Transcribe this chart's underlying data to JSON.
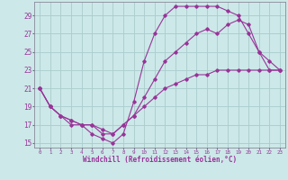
{
  "xlabel": "Windchill (Refroidissement éolien,°C)",
  "bg_color": "#cce8e8",
  "line_color": "#993399",
  "grid_color": "#aacccc",
  "xlim": [
    -0.5,
    23.5
  ],
  "ylim": [
    14.5,
    30.5
  ],
  "yticks": [
    15,
    17,
    19,
    21,
    23,
    25,
    27,
    29
  ],
  "xticks": [
    0,
    1,
    2,
    3,
    4,
    5,
    6,
    7,
    8,
    9,
    10,
    11,
    12,
    13,
    14,
    15,
    16,
    17,
    18,
    19,
    20,
    21,
    22,
    23
  ],
  "line1_x": [
    0,
    1,
    2,
    3,
    4,
    5,
    6,
    7,
    8,
    9,
    10,
    11,
    12,
    13,
    14,
    15,
    16,
    17,
    18,
    19,
    20,
    21,
    22,
    23
  ],
  "line1_y": [
    21,
    19,
    18,
    17,
    17,
    16,
    15.5,
    15,
    16,
    19.5,
    24,
    27,
    29,
    30,
    30,
    30,
    30,
    30,
    29.5,
    29,
    27,
    25,
    23,
    23
  ],
  "line2_x": [
    0,
    1,
    2,
    3,
    4,
    5,
    6,
    7,
    8,
    9,
    10,
    11,
    12,
    13,
    14,
    15,
    16,
    17,
    18,
    19,
    20,
    21,
    22,
    23
  ],
  "line2_y": [
    21,
    19,
    18,
    17.5,
    17,
    17,
    16,
    16,
    17,
    18,
    20,
    22,
    24,
    25,
    26,
    27,
    27.5,
    27,
    28,
    28.5,
    28,
    25,
    24,
    23
  ],
  "line3_x": [
    0,
    1,
    2,
    3,
    4,
    5,
    6,
    7,
    8,
    9,
    10,
    11,
    12,
    13,
    14,
    15,
    16,
    17,
    18,
    19,
    20,
    21,
    22,
    23
  ],
  "line3_y": [
    21,
    19,
    18,
    17.5,
    17,
    17,
    16.5,
    16,
    17,
    18,
    19,
    20,
    21,
    21.5,
    22,
    22.5,
    22.5,
    23,
    23,
    23,
    23,
    23,
    23,
    23
  ]
}
